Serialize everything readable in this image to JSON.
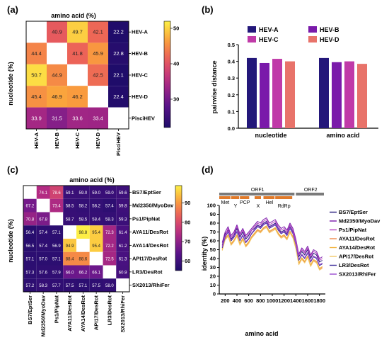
{
  "chart_data": [
    {
      "panel": "(a)",
      "type": "heatmap",
      "title": "amino acid (%)",
      "ylabel": "nucleotide (%)",
      "rows": [
        "HEV-A",
        "HEV-B",
        "HEV-C",
        "HEV-D",
        "PisciHEV"
      ],
      "cols": [
        "HEV-A",
        "HEV-B",
        "HEV-C",
        "HEV-D",
        "PisciHEV"
      ],
      "values": [
        [
          null,
          40.9,
          49.7,
          42.1,
          22.2
        ],
        [
          44.4,
          null,
          41.8,
          45.9,
          22.8
        ],
        [
          50.7,
          44.9,
          null,
          42.5,
          22.1
        ],
        [
          45.4,
          46.9,
          46.2,
          null,
          22.4
        ],
        [
          33.9,
          31.5,
          33.6,
          33.4,
          null
        ]
      ],
      "labels": [
        [
          "",
          "40.9",
          "49.7",
          "42.1",
          "22.2"
        ],
        [
          "44.4",
          "",
          "41.8",
          "45.9",
          "22.8"
        ],
        [
          "50.7",
          "44.9",
          "",
          "42.5",
          "22.1"
        ],
        [
          "45.4",
          "46.9",
          "46.2",
          "",
          "22.4"
        ],
        [
          "33.9",
          "31.5",
          "33.6",
          "33.4",
          ""
        ]
      ],
      "colorbar": {
        "min": 22,
        "max": 52,
        "ticks": [
          30,
          40,
          50
        ],
        "tick_labels": [
          "30",
          "40",
          "50"
        ]
      }
    },
    {
      "panel": "(b)",
      "type": "bar",
      "ylabel": "pairwise distance",
      "categories": [
        "nucleotide",
        "amino acid"
      ],
      "series": [
        {
          "name": "HEV-A",
          "values": [
            0.42,
            0.42
          ]
        },
        {
          "name": "HEV-B",
          "values": [
            0.39,
            0.395
          ]
        },
        {
          "name": "HEV-C",
          "values": [
            0.415,
            0.4
          ]
        },
        {
          "name": "HEV-D",
          "values": [
            0.4,
            0.385
          ]
        }
      ],
      "colors": [
        "#23177a",
        "#7a1aaa",
        "#c03aa8",
        "#e8736a"
      ],
      "ylim": [
        0.0,
        0.5
      ],
      "yticks": [
        0.0,
        0.1,
        0.2,
        0.3,
        0.4,
        0.5
      ],
      "ytick_labels": [
        "0.0",
        "0.1",
        "0.2",
        "0.3",
        "0.4",
        "0.5"
      ],
      "legend_placement": "top"
    },
    {
      "panel": "(c)",
      "type": "heatmap",
      "title": "amino acid (%)",
      "ylabel": "nucleotide (%)",
      "rows": [
        "BS7/EptSer",
        "Md2350/MyoDav",
        "Ps1/PipNat",
        "AYA11/DesRot",
        "AYA14/DesRot",
        "API17/DesRot",
        "LR3/DesRot",
        "SX2013/RhiFer"
      ],
      "cols": [
        "BS7/EptSer",
        "Md2350/MyoDav",
        "Ps1/PipNat",
        "AYA11/DesRot",
        "AYA14/DesRot",
        "API17/DesRot",
        "LR3/DesRot",
        "SX2013/RhiFer"
      ],
      "values": [
        [
          null,
          74.1,
          78.6,
          59.1,
          59.0,
          59.0,
          59.0,
          59.6
        ],
        [
          67.2,
          null,
          73.4,
          58.5,
          58.2,
          58.2,
          57.4,
          59.8
        ],
        [
          70.8,
          67.8,
          null,
          58.7,
          58.5,
          58.4,
          58.3,
          59.3
        ],
        [
          56.4,
          57.4,
          57.1,
          null,
          98.8,
          95.4,
          72.3,
          61.4
        ],
        [
          56.5,
          57.4,
          56.9,
          94.9,
          null,
          95.4,
          72.2,
          61.2
        ],
        [
          57.1,
          57.0,
          57.1,
          88.4,
          88.6,
          null,
          72.5,
          61.3
        ],
        [
          57.3,
          57.6,
          57.9,
          66.0,
          66.2,
          66.1,
          null,
          60.9
        ],
        [
          57.2,
          58.3,
          57.7,
          57.5,
          57.1,
          57.5,
          58.0,
          null
        ]
      ],
      "labels": [
        [
          "",
          "74.1",
          "78.6",
          "59.1",
          "59.0",
          "59.0",
          "59.0",
          "59.6"
        ],
        [
          "67.2",
          "",
          "73.4",
          "58.5",
          "58.2",
          "58.2",
          "57.4",
          "59.8"
        ],
        [
          "70.8",
          "67.8",
          "",
          "58.7",
          "58.5",
          "58.4",
          "58.3",
          "59.3"
        ],
        [
          "56.4",
          "57.4",
          "57.1",
          "",
          "98.8",
          "95.4",
          "72.3",
          "61.4"
        ],
        [
          "56.5",
          "57.4",
          "56.9",
          "94.9",
          "",
          "95.4",
          "72.2",
          "61.2"
        ],
        [
          "57.1",
          "57.0",
          "57.1",
          "88.4",
          "88.6",
          "",
          "72.5",
          "61.3"
        ],
        [
          "57.3",
          "57.6",
          "57.9",
          "66.0",
          "66.2",
          "66.1",
          "",
          "60.9"
        ],
        [
          "57.2",
          "58.3",
          "57.7",
          "57.5",
          "57.1",
          "57.5",
          "58.0",
          ""
        ]
      ],
      "colorbar": {
        "min": 55,
        "max": 99,
        "ticks": [
          60,
          70,
          80,
          90
        ],
        "tick_labels": [
          "60",
          "70",
          "80",
          "90"
        ]
      }
    },
    {
      "panel": "(d)",
      "type": "line",
      "xlabel": "amino acid",
      "ylabel": "identity (%)",
      "xlim": [
        100,
        1900
      ],
      "ylim": [
        0,
        100
      ],
      "xticks": [
        200,
        400,
        600,
        800,
        1000,
        1200,
        1400,
        1600,
        1800
      ],
      "xtick_labels": [
        "200",
        "400",
        "600",
        "800",
        "1000",
        "1200",
        "1400",
        "1600",
        "1800"
      ],
      "yticks": [
        0,
        10,
        20,
        30,
        40,
        50,
        60,
        70,
        80,
        90,
        100
      ],
      "ytick_labels": [
        "0",
        "10",
        "20",
        "30",
        "40",
        "50",
        "60",
        "70",
        "80",
        "90",
        "100"
      ],
      "x": [
        150,
        200,
        250,
        300,
        350,
        400,
        450,
        500,
        550,
        600,
        650,
        700,
        750,
        800,
        850,
        900,
        950,
        1000,
        1050,
        1100,
        1150,
        1200,
        1250,
        1300,
        1350,
        1400,
        1450,
        1500,
        1550,
        1600,
        1650,
        1700,
        1750,
        1800,
        1850
      ],
      "series": [
        {
          "name": "BS7/EptSer",
          "values": [
            55,
            68,
            72,
            62,
            66,
            74,
            64,
            70,
            62,
            66,
            72,
            74,
            78,
            76,
            80,
            82,
            76,
            78,
            80,
            74,
            70,
            72,
            68,
            76,
            70,
            60,
            42,
            48,
            44,
            50,
            40,
            46,
            44,
            36,
            38
          ]
        },
        {
          "name": "Md2350/MyoDav",
          "values": [
            58,
            70,
            76,
            66,
            70,
            78,
            68,
            74,
            66,
            70,
            74,
            78,
            82,
            80,
            84,
            86,
            80,
            82,
            84,
            78,
            74,
            76,
            72,
            80,
            74,
            62,
            45,
            52,
            48,
            54,
            44,
            50,
            48,
            40,
            42
          ]
        },
        {
          "name": "Ps1/PipNat",
          "values": [
            54,
            66,
            74,
            64,
            68,
            76,
            66,
            72,
            64,
            68,
            72,
            76,
            80,
            78,
            82,
            84,
            78,
            80,
            82,
            76,
            72,
            74,
            70,
            78,
            72,
            60,
            44,
            50,
            46,
            52,
            42,
            48,
            46,
            38,
            40
          ]
        },
        {
          "name": "AYA11/DesRot",
          "values": [
            50,
            62,
            66,
            56,
            60,
            66,
            56,
            62,
            54,
            58,
            64,
            68,
            72,
            70,
            74,
            76,
            70,
            72,
            74,
            68,
            64,
            66,
            62,
            70,
            64,
            52,
            34,
            40,
            36,
            42,
            32,
            38,
            36,
            28,
            30
          ]
        },
        {
          "name": "AYA14/DesRot",
          "values": [
            51,
            63,
            67,
            57,
            61,
            67,
            57,
            63,
            55,
            59,
            65,
            69,
            73,
            71,
            75,
            77,
            71,
            73,
            75,
            69,
            65,
            67,
            63,
            71,
            65,
            53,
            35,
            41,
            37,
            43,
            33,
            39,
            37,
            29,
            31
          ]
        },
        {
          "name": "API17/DesRot",
          "values": [
            49,
            61,
            65,
            55,
            59,
            65,
            55,
            61,
            53,
            57,
            63,
            67,
            71,
            69,
            73,
            75,
            69,
            71,
            73,
            67,
            63,
            65,
            61,
            69,
            63,
            51,
            33,
            39,
            35,
            41,
            31,
            37,
            35,
            27,
            29
          ]
        },
        {
          "name": "LR3/DesRot",
          "values": [
            52,
            64,
            70,
            60,
            64,
            70,
            60,
            66,
            58,
            62,
            68,
            72,
            76,
            74,
            78,
            80,
            74,
            76,
            78,
            72,
            68,
            70,
            66,
            74,
            68,
            56,
            38,
            44,
            40,
            46,
            36,
            42,
            40,
            32,
            34
          ]
        },
        {
          "name": "SX2013/RhiFer",
          "values": [
            53,
            65,
            71,
            61,
            65,
            71,
            61,
            67,
            59,
            63,
            69,
            73,
            77,
            75,
            79,
            81,
            75,
            77,
            79,
            73,
            69,
            71,
            67,
            75,
            69,
            57,
            39,
            45,
            41,
            47,
            37,
            43,
            41,
            33,
            35
          ]
        }
      ],
      "colors": [
        "#23177a",
        "#7a1aaa",
        "#b43fc0",
        "#f08a4c",
        "#f2b13a",
        "#f3c96a",
        "#3a2a9a",
        "#9a4ad0"
      ],
      "genome": {
        "orfs": [
          {
            "label": "ORF1",
            "start": 100,
            "end": 1400
          },
          {
            "label": "ORF2",
            "start": 1400,
            "end": 1900
          }
        ],
        "domains": [
          {
            "label": "Met",
            "start": 100,
            "end": 300
          },
          {
            "label": "Y",
            "start": 300,
            "end": 450
          },
          {
            "label": "PCP",
            "start": 450,
            "end": 620
          },
          {
            "label": "X",
            "start": 700,
            "end": 820
          },
          {
            "label": "Hel",
            "start": 850,
            "end": 1050
          },
          {
            "label": "RdRp",
            "start": 1050,
            "end": 1350
          }
        ]
      },
      "legend_placement": "right"
    }
  ]
}
